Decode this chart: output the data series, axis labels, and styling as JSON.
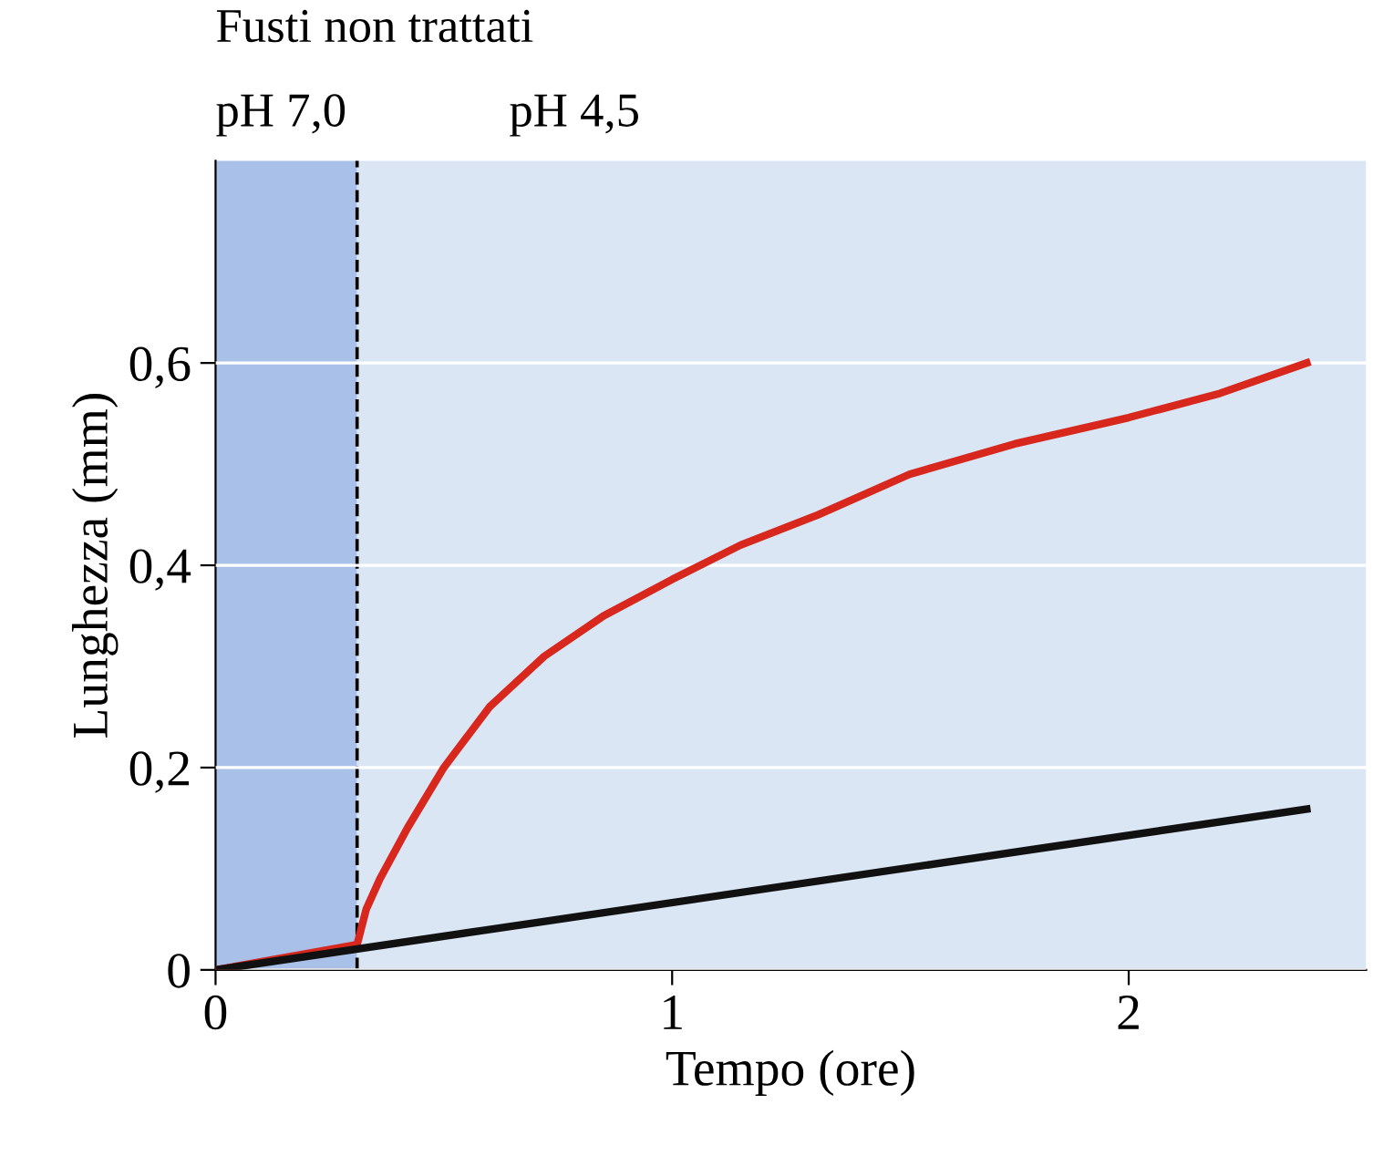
{
  "chart_data": {
    "type": "line",
    "title": "Fusti non trattati",
    "xlabel": "Tempo (ore)",
    "ylabel": "Lunghezza (mm)",
    "xlim": [
      0,
      2.52
    ],
    "ylim": [
      0,
      0.8
    ],
    "xticks": [
      0,
      1,
      2
    ],
    "yticks": [
      0,
      {
        "value": 0.2,
        "label": "0,2"
      },
      {
        "value": 0.4,
        "label": "0,4"
      },
      {
        "value": 0.6,
        "label": "0,6"
      }
    ],
    "grid": "y",
    "marker": "none",
    "line_style": "solid",
    "bands": [
      {
        "axis": "x",
        "from": 0,
        "to": 0.31,
        "label": "pH 7,0",
        "color": "#a9c0e8"
      },
      {
        "axis": "x",
        "from": 0.31,
        "to": 2.52,
        "label": "pH 4,5",
        "color": "#dbe6f5"
      }
    ],
    "ref_lines": [
      {
        "axis": "x",
        "value": 0.31,
        "label": null,
        "line_style": "dashed",
        "color": "#000000"
      }
    ],
    "series": [
      {
        "color": "#d8281e",
        "x": [
          0,
          0.31,
          0.33,
          0.36,
          0.42,
          0.5,
          0.6,
          0.72,
          0.85,
          1.0,
          1.15,
          1.32,
          1.52,
          1.75,
          2.0,
          2.2,
          2.39
        ],
        "values": [
          0,
          0.025,
          0.06,
          0.09,
          0.14,
          0.2,
          0.26,
          0.31,
          0.35,
          0.386,
          0.42,
          0.45,
          0.49,
          0.52,
          0.546,
          0.57,
          0.6
        ]
      },
      {
        "color": "#111111",
        "x": [
          0,
          2.39
        ],
        "values": [
          0,
          0.159
        ]
      }
    ]
  }
}
